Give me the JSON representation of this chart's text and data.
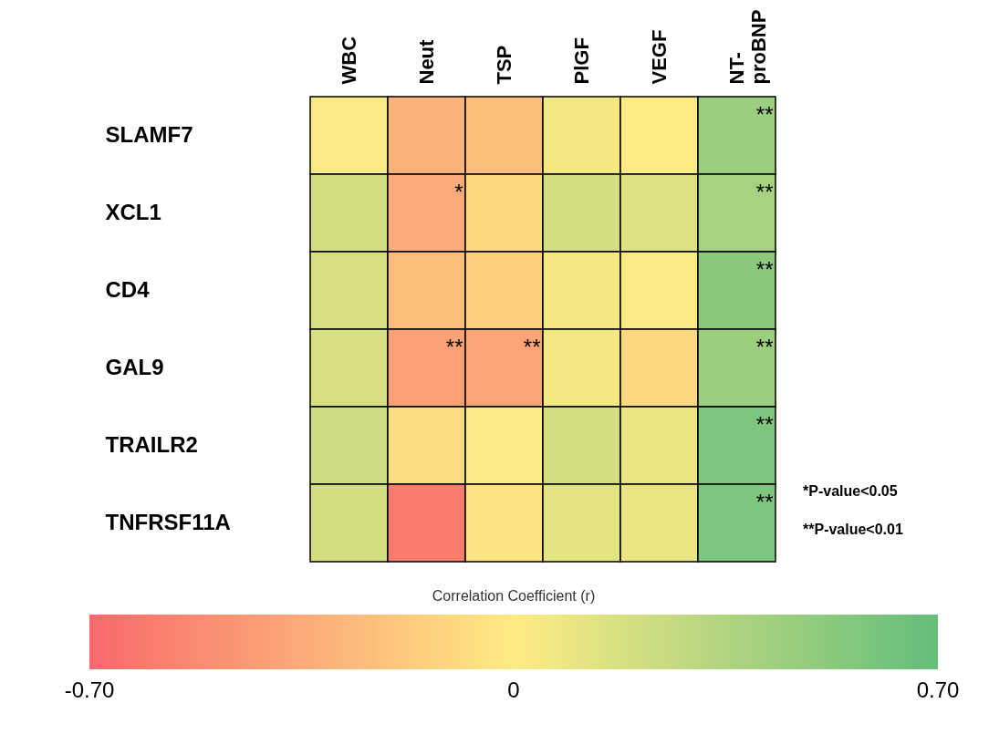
{
  "chart_data": {
    "type": "heatmap",
    "categories": [
      "WBC",
      "Neut",
      "TSP",
      "PlGF",
      "VEGF",
      "NT-proBNP"
    ],
    "y_categories": [
      "SLAMF7",
      "XCL1",
      "CD4",
      "GAL9",
      "TRAILR2",
      "TNFRSF11A"
    ],
    "cells": [
      [
        0.02,
        -0.3,
        -0.25,
        0.05,
        0.0,
        0.45
      ],
      [
        0.2,
        -0.35,
        -0.1,
        0.2,
        0.15,
        0.4
      ],
      [
        0.18,
        -0.25,
        -0.15,
        0.05,
        0.02,
        0.52
      ],
      [
        0.18,
        -0.4,
        -0.38,
        0.05,
        -0.1,
        0.45
      ],
      [
        0.22,
        -0.08,
        0.02,
        0.2,
        0.1,
        0.58
      ],
      [
        0.2,
        -0.6,
        -0.05,
        0.12,
        0.1,
        0.58
      ]
    ],
    "cell_labels": [
      [
        null,
        null,
        null,
        null,
        null,
        "**"
      ],
      [
        null,
        "*",
        null,
        null,
        null,
        "**"
      ],
      [
        null,
        null,
        null,
        null,
        null,
        "**"
      ],
      [
        null,
        "**",
        "**",
        null,
        null,
        "**"
      ],
      [
        null,
        null,
        null,
        null,
        null,
        "**"
      ],
      [
        null,
        null,
        null,
        null,
        null,
        "**"
      ]
    ],
    "colors": [
      "#f8696b",
      "#ffeb84",
      "#63be7b"
    ],
    "clabel": "Correlation Coefficient (r)",
    "clim": [
      -0.7,
      0.7
    ],
    "cticks": [
      {
        "value": -0.7,
        "label": "-0.70"
      },
      0,
      {
        "value": 0.7,
        "label": "0.70"
      }
    ],
    "annotations": [
      "*P-value<0.05",
      "**P-value<0.01"
    ]
  }
}
